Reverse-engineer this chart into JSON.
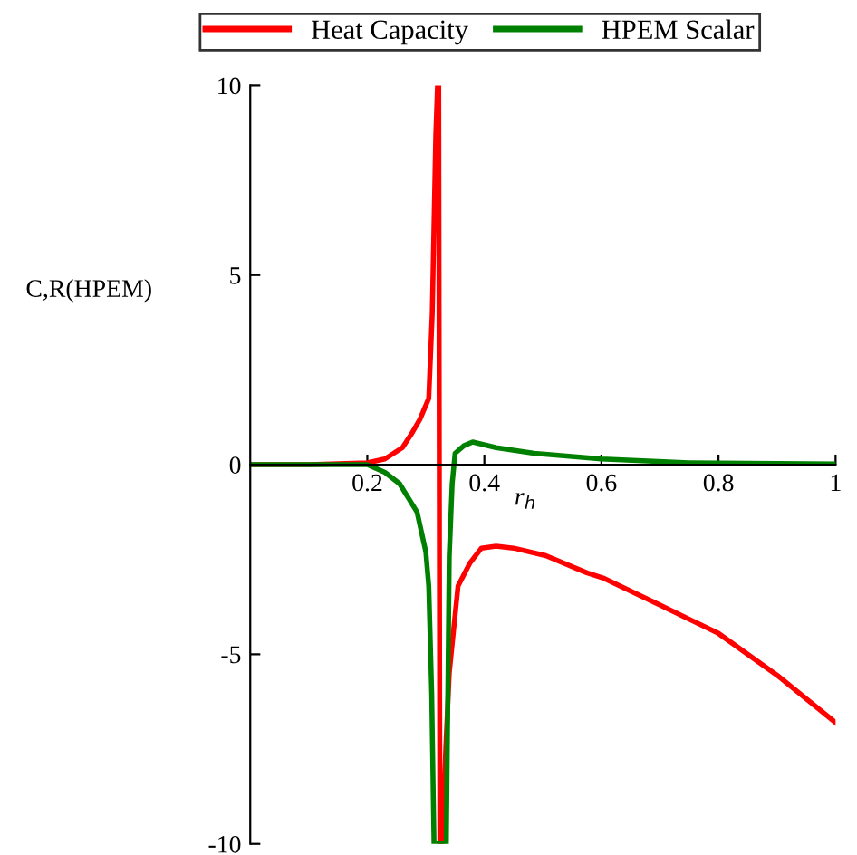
{
  "chart_data": {
    "type": "line",
    "ylabel": "C,R(HPEM)",
    "xlabel": "r$_{h}$",
    "xlim": [
      0,
      1
    ],
    "ylim": [
      -10,
      10
    ],
    "xticks": [
      {
        "value": 0.2,
        "label": "0.2"
      },
      {
        "value": 0.4,
        "label": "0.4"
      },
      {
        "value": 0.6,
        "label": "0.6"
      },
      {
        "value": 0.8,
        "label": "0.8"
      },
      {
        "value": 1,
        "label": "1"
      }
    ],
    "yticks": [
      -10,
      -5,
      0,
      5,
      10
    ],
    "legend": "top",
    "grid": false,
    "marker": "none",
    "line_style": "solid",
    "series": [
      {
        "name": "Heat Capacity",
        "color": "#ff0000",
        "x": [
          0,
          0.1,
          0.2,
          0.23,
          0.26,
          0.275,
          0.29,
          0.305,
          0.311,
          0.317,
          0.32,
          0.322,
          0.324,
          0.328,
          0.334,
          0.34,
          0.355,
          0.375,
          0.395,
          0.42,
          0.45,
          0.505,
          0.575,
          0.605,
          0.7,
          0.8,
          0.9,
          1.0
        ],
        "values": [
          0,
          0,
          0.05,
          0.15,
          0.45,
          0.8,
          1.2,
          1.75,
          4,
          8.7,
          10,
          10,
          -10,
          -10,
          -7.5,
          -5.5,
          -3.2,
          -2.6,
          -2.2,
          -2.15,
          -2.2,
          -2.4,
          -2.85,
          -3.0,
          -3.7,
          -4.45,
          -5.55,
          -6.8
        ]
      },
      {
        "name": "HPEM Scalar",
        "color": "#008000",
        "x": [
          0,
          0.1,
          0.2,
          0.23,
          0.255,
          0.285,
          0.3,
          0.305,
          0.31,
          0.314,
          0.335,
          0.34,
          0.345,
          0.35,
          0.365,
          0.38,
          0.42,
          0.485,
          0.6,
          0.75,
          1.0
        ],
        "values": [
          0,
          0,
          0,
          -0.2,
          -0.5,
          -1.25,
          -2.3,
          -3.2,
          -6,
          -10,
          -10,
          -2.4,
          -0.5,
          0.3,
          0.5,
          0.6,
          0.45,
          0.3,
          0.15,
          0.05,
          0.02
        ]
      }
    ]
  }
}
